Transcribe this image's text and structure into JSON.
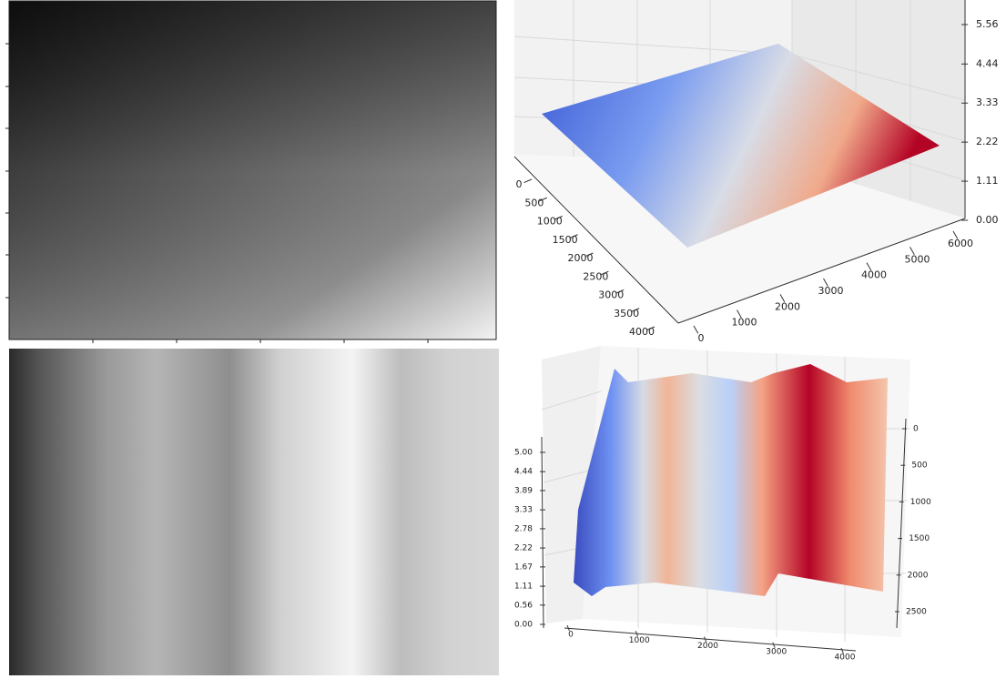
{
  "chart_data": [
    {
      "type": "image"
    },
    {
      "type": "surface",
      "xticks": [
        0,
        500,
        1000,
        1500,
        2000,
        2500,
        3000,
        3500,
        4000
      ],
      "yticks": [
        0,
        1000,
        2000,
        3000,
        4000,
        5000,
        6000
      ],
      "zticks": [
        {
          "value": 0,
          "label": "0.00"
        },
        1.11,
        2.22,
        3.33,
        4.44,
        5.56
      ]
    },
    {
      "type": "image"
    },
    {
      "type": "surface",
      "xticks": [
        0,
        1000,
        2000,
        3000,
        4000
      ],
      "yticks": [
        0,
        500,
        1000,
        1500,
        2000,
        2500
      ],
      "zticks": [
        {
          "value": 0,
          "label": "0.00"
        },
        0.56,
        1.11,
        1.67,
        2.22,
        2.78,
        3.33,
        3.89,
        4.44,
        {
          "value": 5,
          "label": "5.00"
        }
      ]
    }
  ]
}
